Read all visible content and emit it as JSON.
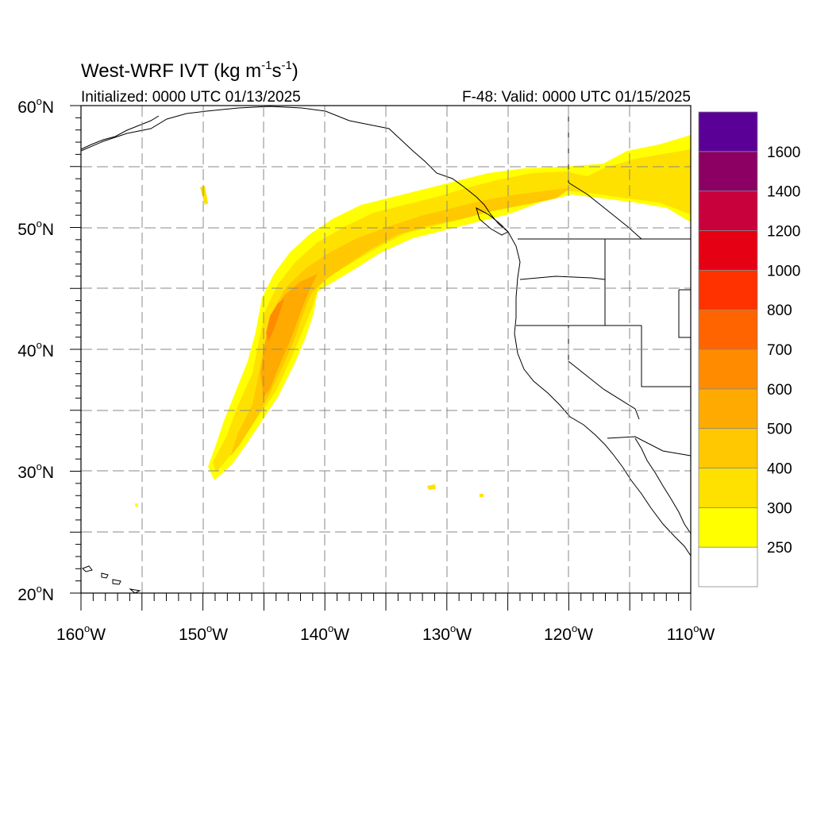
{
  "title": "West-WRF IVT (kg m",
  "title_unit_sup_1": "-1",
  "title_unit_mid": "s",
  "title_unit_sup_2": "-1",
  "title_unit_close": ")",
  "subtitle_left": "Initialized: 0000 UTC 01/13/2025",
  "subtitle_right": "F-48: Valid: 0000 UTC 01/15/2025",
  "lat_labels": [
    "60",
    "50",
    "40",
    "30",
    "20"
  ],
  "lat_suffix": "N",
  "lon_labels": [
    "160",
    "150",
    "140",
    "130",
    "120",
    "110"
  ],
  "lon_suffix": "W",
  "degree_symbol": "o",
  "colorbar": {
    "levels": [
      "250",
      "300",
      "400",
      "500",
      "600",
      "700",
      "800",
      "1000",
      "1200",
      "1400",
      "1600"
    ],
    "colors": [
      "#ffffff",
      "#ffff00",
      "#ffe100",
      "#ffc800",
      "#ffaa00",
      "#ff8c00",
      "#ff6400",
      "#ff3200",
      "#e60014",
      "#c8003c",
      "#8c0064",
      "#5a0096"
    ]
  },
  "map_extent": {
    "lon": [
      -160,
      -110
    ],
    "lat": [
      20,
      60
    ]
  },
  "grid": "dashed"
}
